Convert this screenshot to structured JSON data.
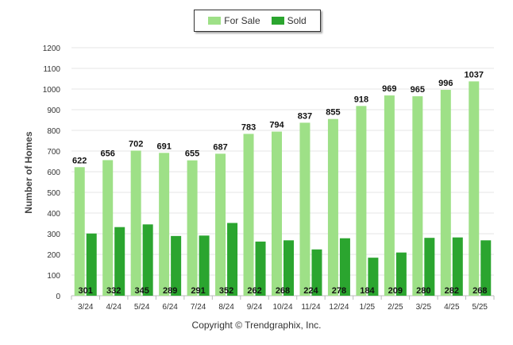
{
  "chart_data": {
    "type": "bar",
    "categories": [
      "3/24",
      "4/24",
      "5/24",
      "6/24",
      "7/24",
      "8/24",
      "9/24",
      "10/24",
      "11/24",
      "12/24",
      "1/25",
      "2/25",
      "3/25",
      "4/25",
      "5/25"
    ],
    "series": [
      {
        "name": "For Sale",
        "color": "#9ee087",
        "values": [
          622,
          656,
          702,
          691,
          655,
          687,
          783,
          794,
          837,
          855,
          918,
          969,
          965,
          996,
          1037
        ]
      },
      {
        "name": "Sold",
        "color": "#2ba52f",
        "values": [
          301,
          332,
          345,
          289,
          291,
          352,
          262,
          268,
          224,
          278,
          184,
          209,
          280,
          282,
          268
        ]
      }
    ],
    "ylabel": "Number of Homes",
    "ylim": [
      0,
      1200
    ],
    "yticks": [
      0,
      100,
      200,
      300,
      400,
      500,
      600,
      700,
      800,
      900,
      1000,
      1100,
      1200
    ],
    "grid": true,
    "legend_position": "top-center"
  },
  "legend": {
    "for_sale": "For Sale",
    "sold": "Sold"
  },
  "footer": {
    "copyright": "Copyright © Trendgraphix, Inc."
  }
}
